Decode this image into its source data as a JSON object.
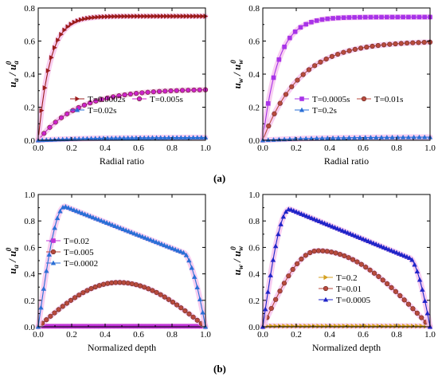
{
  "figure": {
    "caption_a": "(a)",
    "caption_b": "(b)"
  },
  "chart_data": [
    {
      "type": "line",
      "panel": "a-left",
      "xlabel": "Radial ratio",
      "ylabel": {
        "main": "u",
        "sub": "a",
        "den": "u",
        "den_sub": "a",
        "den_sup": "0"
      },
      "xlim": [
        0.0,
        1.0
      ],
      "ylim": [
        0.0,
        0.8
      ],
      "xticks": [
        "0.0",
        "0.2",
        "0.4",
        "0.6",
        "0.8",
        "1.0"
      ],
      "yticks": [
        "0.0",
        "0.2",
        "0.4",
        "0.6",
        "0.8"
      ],
      "legend_position": "lower-right",
      "series": [
        {
          "name": "T=0.0002s",
          "color": "#9c1c1c",
          "marker": "tri-right",
          "model": "rise",
          "A": 0.75,
          "k": 14,
          "count": 52
        },
        {
          "name": "T=0.005s",
          "color": "#cc22cc",
          "marker": "circle",
          "model": "rise",
          "A": 0.31,
          "k": 4.2,
          "count": 30
        },
        {
          "name": "T=0.02s",
          "color": "#2a6fd6",
          "marker": "tri-up",
          "model": "rise",
          "A": 0.018,
          "k": 3,
          "count": 42
        }
      ]
    },
    {
      "type": "line",
      "panel": "a-right",
      "xlabel": "Radial ratio",
      "ylabel": {
        "main": "u",
        "sub": "w",
        "den": "u",
        "den_sub": "w",
        "den_sup": "0"
      },
      "xlim": [
        0.0,
        1.0
      ],
      "ylim": [
        0.0,
        0.8
      ],
      "xticks": [
        "0.0",
        "0.2",
        "0.4",
        "0.6",
        "0.8",
        "1.0"
      ],
      "yticks": [
        "0.0",
        "0.2",
        "0.4",
        "0.6",
        "0.8"
      ],
      "legend_position": "lower-right",
      "series": [
        {
          "name": "T=0.0005s",
          "color": "#a833e8",
          "marker": "square",
          "model": "rise",
          "A": 0.745,
          "k": 11,
          "count": 32
        },
        {
          "name": "T=0.01s",
          "color": "#b84a3e",
          "marker": "circle",
          "model": "rise",
          "A": 0.6,
          "k": 4.5,
          "count": 30
        },
        {
          "name": "T=0.2s",
          "color": "#2a6fd6",
          "marker": "tri-up",
          "model": "rise",
          "A": 0.02,
          "k": 3,
          "count": 32
        }
      ]
    },
    {
      "type": "line",
      "panel": "b-left",
      "xlabel": "Normalized depth",
      "ylabel": {
        "main": "u",
        "sub": "a",
        "den": "u",
        "den_sub": "a",
        "den_sup": "0"
      },
      "xlim": [
        0.0,
        1.0
      ],
      "ylim": [
        0.0,
        1.0
      ],
      "xticks": [
        "0.0",
        "0.2",
        "0.4",
        "0.6",
        "0.8",
        "1.0"
      ],
      "yticks": [
        "0.0",
        "0.2",
        "0.4",
        "0.6",
        "0.8",
        "1.0"
      ],
      "legend_position": "middle-left",
      "series": [
        {
          "name": "T=0.02",
          "color": "#c033d8",
          "marker": "square",
          "model": "flat",
          "A": 0.004,
          "count": 44
        },
        {
          "name": "T=0.005",
          "color": "#b84a3e",
          "marker": "circle",
          "model": "hump",
          "A": 0.335,
          "peak": 0.48,
          "count": 42
        },
        {
          "name": "T=0.0002",
          "color": "#2a6fd6",
          "marker": "tri-up",
          "model": "peak",
          "A": 0.91,
          "peak": 0.16,
          "mid": 0.6,
          "end_x": 0.87,
          "end_y": 0.56,
          "count": 62
        }
      ]
    },
    {
      "type": "line",
      "panel": "b-right",
      "xlabel": "Normalized depth",
      "ylabel": {
        "main": "u",
        "sub": "w",
        "den": "u",
        "den_sub": "w",
        "den_sup": "0"
      },
      "xlim": [
        0.0,
        1.0
      ],
      "ylim": [
        0.0,
        1.0
      ],
      "xticks": [
        "0.0",
        "0.2",
        "0.4",
        "0.6",
        "0.8",
        "1.0"
      ],
      "yticks": [
        "0.0",
        "0.2",
        "0.4",
        "0.6",
        "0.8",
        "1.0"
      ],
      "legend_position": "middle-right",
      "series": [
        {
          "name": "T=0.2",
          "color": "#d4a020",
          "marker": "tri-right",
          "model": "flat",
          "A": 0.005,
          "count": 40
        },
        {
          "name": "T=0.01",
          "color": "#b84a3e",
          "marker": "circle",
          "model": "hump",
          "A": 0.575,
          "peak": 0.33,
          "count": 40
        },
        {
          "name": "T=0.0005",
          "color": "#1f24c8",
          "marker": "tri-up",
          "model": "peak",
          "A": 0.89,
          "peak": 0.16,
          "mid": 0.55,
          "end_x": 0.88,
          "end_y": 0.52,
          "count": 66
        }
      ]
    }
  ]
}
